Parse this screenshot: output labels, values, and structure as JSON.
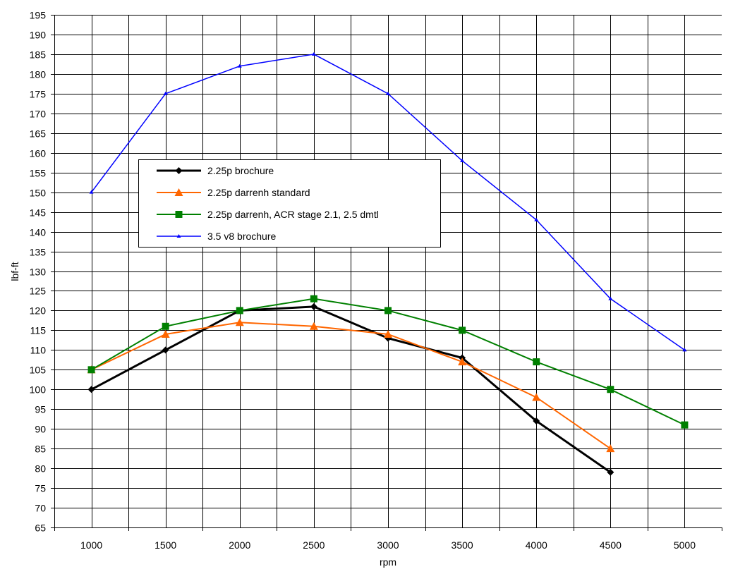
{
  "chart_data": {
    "type": "line",
    "title": "",
    "xlabel": "rpm",
    "ylabel": "lbf-ft",
    "categories": [
      "1000",
      "1500",
      "2000",
      "2500",
      "3000",
      "3500",
      "4000",
      "4500",
      "5000"
    ],
    "ylim": [
      65,
      195
    ],
    "ystep": 5,
    "grid": true,
    "legend_position": "upper-left-inside",
    "series": [
      {
        "name": "2.25p brochure",
        "color": "#000000",
        "marker": "diamond",
        "values": [
          100,
          110,
          120,
          121,
          113,
          108,
          92,
          79,
          null
        ]
      },
      {
        "name": "2.25p darrenh standard",
        "color": "#FF6600",
        "marker": "triangle",
        "values": [
          105,
          114,
          117,
          116,
          114,
          107,
          98,
          85,
          null
        ]
      },
      {
        "name": "2.25p darrenh, ACR stage 2.1, 2.5 dmtl",
        "color": "#008000",
        "marker": "square",
        "values": [
          105,
          116,
          120,
          123,
          120,
          115,
          107,
          100,
          91
        ]
      },
      {
        "name": "3.5 v8 brochure",
        "color": "#0000FF",
        "marker": "triangle-small",
        "values": [
          150,
          175,
          182,
          185,
          175,
          158,
          143,
          123,
          110
        ]
      }
    ]
  }
}
